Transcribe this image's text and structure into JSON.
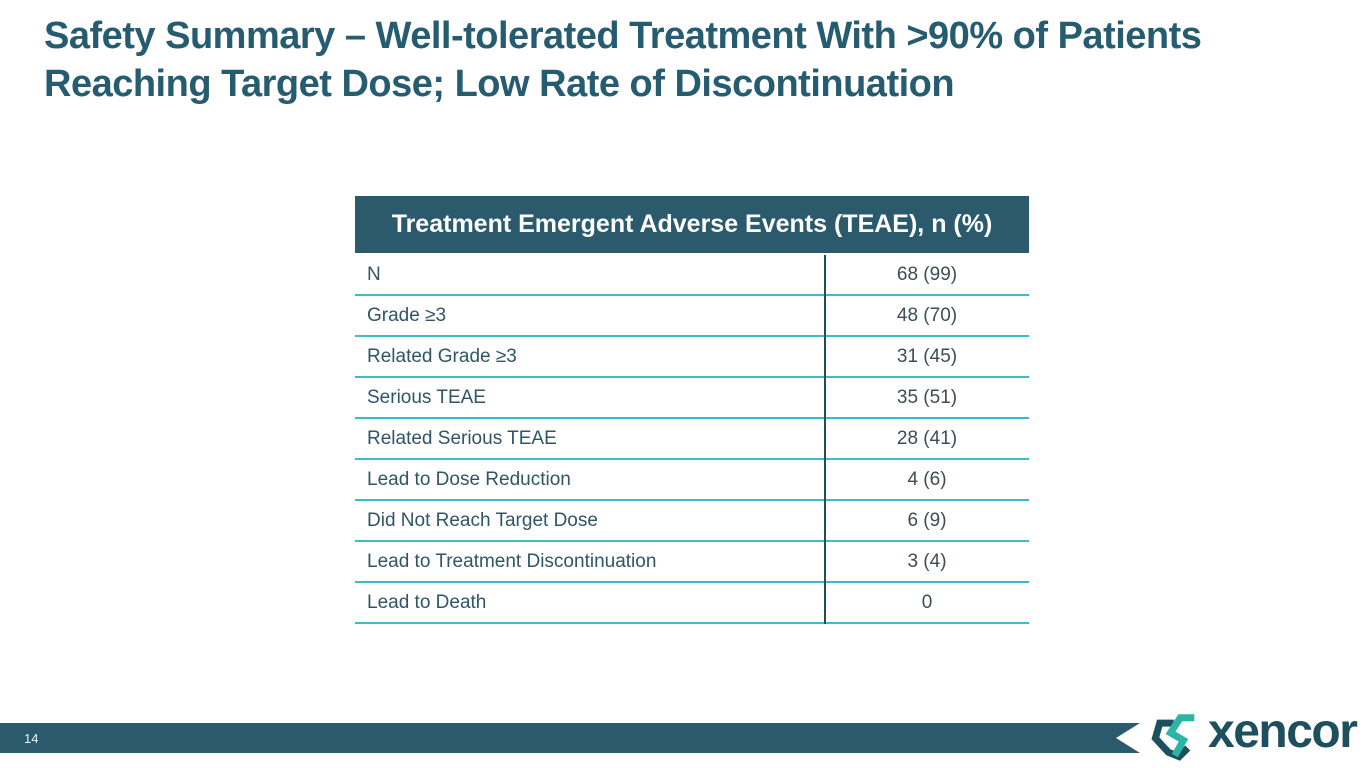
{
  "slide": {
    "title": "Safety Summary – Well-tolerated Treatment With >90% of Patients Reaching Target Dose; Low Rate of Discontinuation",
    "page_number": "14",
    "brand": "xencor"
  },
  "table": {
    "header": "Treatment Emergent Adverse Events (TEAE), n (%)",
    "rows": [
      {
        "label": "N",
        "value": "68 (99)"
      },
      {
        "label": "Grade ≥3",
        "value": "48 (70)"
      },
      {
        "label": "Related Grade ≥3",
        "value": "31 (45)"
      },
      {
        "label": "Serious TEAE",
        "value": "35 (51)"
      },
      {
        "label": "Related Serious TEAE",
        "value": "28 (41)"
      },
      {
        "label": "Lead to Dose Reduction",
        "value": "4 (6)"
      },
      {
        "label": "Did Not Reach Target Dose",
        "value": "6 (9)"
      },
      {
        "label": "Lead to Treatment Discontinuation",
        "value": "3 (4)"
      },
      {
        "label": "Lead to Death",
        "value": "0"
      }
    ]
  },
  "colors": {
    "header_background": "#2a5a6b",
    "title_text": "#265c70",
    "row_divider_teal": "#3abdc6",
    "column_divider_dark": "#1d4d5c",
    "footer_bar": "#2a5a6b",
    "logo_teal": "#2cb4a4",
    "logo_dark": "#1d4f5e"
  }
}
